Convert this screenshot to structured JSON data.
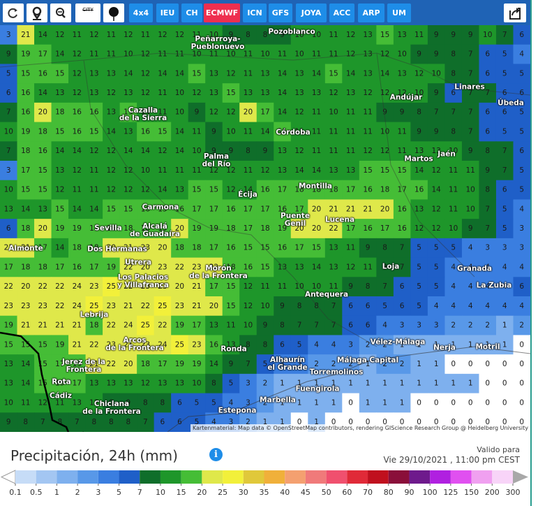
{
  "toolbar": {
    "city_button": "CITY",
    "buttons": [
      "4x4",
      "IEU",
      "CH",
      "ECMWF",
      "ICN",
      "GFS",
      "JOYA",
      "ACC",
      "ARP",
      "UM"
    ],
    "active": "ECMWF"
  },
  "map": {
    "grid": [
      [
        3,
        21,
        14,
        12,
        11,
        12,
        11,
        12,
        11,
        12,
        12,
        11,
        10,
        9,
        8,
        8,
        9,
        10,
        10,
        11,
        12,
        13,
        15,
        13,
        11,
        9,
        9,
        9,
        10,
        7,
        6
      ],
      [
        9,
        19,
        17,
        14,
        12,
        11,
        11,
        10,
        12,
        11,
        11,
        10,
        11,
        10,
        11,
        10,
        11,
        10,
        11,
        11,
        12,
        13,
        12,
        10,
        9,
        9,
        8,
        7,
        6,
        5,
        4
      ],
      [
        5,
        15,
        16,
        15,
        12,
        13,
        13,
        14,
        12,
        14,
        14,
        15,
        13,
        12,
        11,
        13,
        14,
        13,
        14,
        15,
        14,
        13,
        14,
        13,
        12,
        10,
        8,
        7,
        6,
        5,
        5
      ],
      [
        6,
        16,
        14,
        13,
        12,
        13,
        12,
        13,
        12,
        11,
        10,
        12,
        13,
        15,
        13,
        13,
        14,
        13,
        13,
        12,
        13,
        12,
        12,
        12,
        10,
        9,
        6,
        7,
        7,
        6,
        6
      ],
      [
        7,
        16,
        20,
        18,
        16,
        16,
        13,
        15,
        14,
        11,
        10,
        9,
        12,
        12,
        20,
        17,
        14,
        12,
        11,
        10,
        11,
        11,
        9,
        9,
        8,
        7,
        7,
        7,
        6,
        6,
        5
      ],
      [
        10,
        19,
        18,
        15,
        16,
        15,
        14,
        13,
        16,
        15,
        14,
        11,
        9,
        10,
        11,
        14,
        15,
        11,
        11,
        11,
        11,
        11,
        10,
        11,
        9,
        9,
        8,
        7,
        6,
        5,
        5
      ],
      [
        7,
        18,
        16,
        14,
        14,
        12,
        12,
        14,
        14,
        12,
        14,
        10,
        9,
        9,
        8,
        9,
        13,
        12,
        11,
        11,
        11,
        12,
        12,
        11,
        13,
        13,
        10,
        9,
        8,
        7,
        6
      ],
      [
        3,
        17,
        15,
        13,
        12,
        11,
        12,
        12,
        10,
        11,
        11,
        11,
        12,
        12,
        11,
        12,
        13,
        14,
        14,
        13,
        13,
        15,
        15,
        15,
        14,
        12,
        11,
        11,
        9,
        7,
        5
      ],
      [
        10,
        15,
        15,
        12,
        11,
        11,
        12,
        12,
        12,
        14,
        13,
        15,
        15,
        12,
        14,
        16,
        17,
        18,
        18,
        18,
        17,
        16,
        18,
        17,
        16,
        14,
        11,
        10,
        8,
        6,
        5
      ],
      [
        13,
        14,
        13,
        15,
        14,
        14,
        15,
        15,
        16,
        15,
        16,
        17,
        17,
        16,
        17,
        17,
        16,
        17,
        20,
        21,
        21,
        21,
        20,
        16,
        13,
        12,
        11,
        10,
        7,
        5,
        4
      ],
      [
        6,
        18,
        20,
        19,
        19,
        18,
        16,
        18,
        18,
        19,
        20,
        19,
        19,
        18,
        17,
        18,
        19,
        20,
        20,
        22,
        17,
        16,
        17,
        16,
        12,
        12,
        10,
        9,
        7,
        5,
        3
      ],
      [
        21,
        21,
        17,
        14,
        18,
        18,
        20,
        21,
        23,
        20,
        18,
        18,
        17,
        16,
        15,
        15,
        16,
        17,
        15,
        13,
        11,
        9,
        8,
        7,
        5,
        5,
        5,
        4,
        3,
        3,
        3
      ],
      [
        17,
        18,
        18,
        17,
        16,
        17,
        19,
        22,
        20,
        23,
        22,
        23,
        22,
        18,
        16,
        15,
        13,
        13,
        14,
        13,
        12,
        11,
        8,
        7,
        5,
        5,
        4,
        4,
        4,
        4,
        4
      ],
      [
        22,
        20,
        22,
        22,
        24,
        23,
        25,
        22,
        23,
        23,
        20,
        21,
        17,
        15,
        12,
        11,
        11,
        10,
        10,
        11,
        9,
        8,
        7,
        6,
        5,
        5,
        4,
        4,
        4,
        4,
        6
      ],
      [
        23,
        23,
        23,
        22,
        24,
        25,
        23,
        21,
        22,
        25,
        23,
        21,
        20,
        15,
        12,
        10,
        9,
        8,
        8,
        7,
        6,
        6,
        5,
        6,
        5,
        4,
        4,
        4,
        4,
        4,
        4
      ],
      [
        19,
        21,
        21,
        21,
        21,
        18,
        22,
        24,
        25,
        22,
        19,
        17,
        13,
        11,
        10,
        9,
        8,
        7,
        7,
        7,
        6,
        6,
        4,
        3,
        3,
        3,
        2,
        2,
        2,
        1,
        2
      ],
      [
        15,
        15,
        15,
        19,
        21,
        22,
        23,
        21,
        23,
        24,
        25,
        23,
        16,
        13,
        8,
        8,
        6,
        5,
        4,
        4,
        3,
        2,
        2,
        1,
        1,
        1,
        1,
        1,
        1,
        1,
        0
      ],
      [
        13,
        14,
        15,
        17,
        15,
        21,
        22,
        20,
        18,
        17,
        19,
        19,
        14,
        9,
        7,
        5,
        4,
        3,
        2,
        2,
        2,
        1,
        2,
        2,
        1,
        1,
        0,
        0,
        0,
        0,
        0
      ],
      [
        13,
        14,
        15,
        15,
        17,
        13,
        13,
        13,
        12,
        13,
        13,
        10,
        8,
        5,
        3,
        2,
        1,
        1,
        1,
        1,
        1,
        1,
        1,
        1,
        1,
        1,
        1,
        1,
        0,
        0,
        0
      ],
      [
        10,
        11,
        12,
        11,
        13,
        12,
        9,
        9,
        8,
        8,
        6,
        5,
        5,
        4,
        3,
        2,
        1,
        1,
        1,
        1,
        0,
        1,
        1,
        1,
        0,
        0,
        0,
        0,
        0,
        0,
        0
      ],
      [
        9,
        8,
        7,
        8,
        7,
        8,
        8,
        8,
        7,
        6,
        6,
        5,
        4,
        3,
        2,
        1,
        1,
        0,
        1,
        0,
        0,
        0,
        0,
        0,
        0,
        0,
        0,
        0,
        0,
        0,
        0
      ]
    ],
    "cities": [
      {
        "lines": [
          "Pozoblanco"
        ]
      },
      {
        "lines": [
          "Peñarroya-",
          "Pueblonuevo"
        ]
      },
      {
        "lines": [
          "Linares"
        ]
      },
      {
        "lines": [
          "Andújar"
        ]
      },
      {
        "lines": [
          "Úbeda"
        ]
      },
      {
        "lines": [
          "Cazalla",
          "de la Sierra"
        ]
      },
      {
        "lines": [
          "Córdoba"
        ]
      },
      {
        "lines": [
          "Palma",
          "del Río"
        ]
      },
      {
        "lines": [
          "Martos"
        ]
      },
      {
        "lines": [
          "Jaén"
        ]
      },
      {
        "lines": [
          "Montilla"
        ]
      },
      {
        "lines": [
          "Écija"
        ]
      },
      {
        "lines": [
          "Carmona"
        ]
      },
      {
        "lines": [
          "Sevilla"
        ]
      },
      {
        "lines": [
          "Alcalá",
          "de Guadaíra"
        ]
      },
      {
        "lines": [
          "Puente",
          "Genil"
        ]
      },
      {
        "lines": [
          "Lucena"
        ]
      },
      {
        "lines": [
          "Almonte"
        ]
      },
      {
        "lines": [
          "Dos Hermanas"
        ]
      },
      {
        "lines": [
          "Utrera"
        ]
      },
      {
        "lines": [
          "Morón",
          "de la Frontera"
        ]
      },
      {
        "lines": [
          "Loja"
        ]
      },
      {
        "lines": [
          "Granada"
        ]
      },
      {
        "lines": [
          "Los Palacios",
          "y Villafranca"
        ]
      },
      {
        "lines": [
          "La Zubia"
        ]
      },
      {
        "lines": [
          "Antequera"
        ]
      },
      {
        "lines": [
          "Lebrija"
        ]
      },
      {
        "lines": [
          "Vélez-Málaga"
        ]
      },
      {
        "lines": [
          "Nerja"
        ]
      },
      {
        "lines": [
          "Motril"
        ]
      },
      {
        "lines": [
          "Arcos",
          "de la Frontera"
        ]
      },
      {
        "lines": [
          "Ronda"
        ]
      },
      {
        "lines": [
          "Jerez de la",
          "Frontera"
        ]
      },
      {
        "lines": [
          "Alhaurín",
          "el Grande"
        ]
      },
      {
        "lines": [
          "Málaga Capital"
        ]
      },
      {
        "lines": [
          "Torremolinos"
        ]
      },
      {
        "lines": [
          "Rota"
        ]
      },
      {
        "lines": [
          "Fuengirola"
        ]
      },
      {
        "lines": [
          "Cádiz"
        ]
      },
      {
        "lines": [
          "Marbella"
        ]
      },
      {
        "lines": [
          "Chiclana",
          "de la Frontera"
        ]
      },
      {
        "lines": [
          "Estepona"
        ]
      }
    ],
    "attribution": "Kartenmaterial: Map data © OpenStreetMap contributors, rendering GIScience Research Group @ Heidelberg University"
  },
  "panel": {
    "title": "Precipitación, 24h (mm)",
    "valid_label": "Valido para",
    "valid_time": "Vie 29/10/2021 , 11:00 pm CEST"
  },
  "legend": {
    "thresholds": [
      0.1,
      0.5,
      1,
      2,
      3,
      5,
      7,
      10,
      15,
      20,
      25,
      30,
      35,
      40,
      45,
      50,
      60,
      70,
      80,
      90,
      100,
      125,
      150,
      200,
      300
    ],
    "colors": [
      "#ffffff",
      "#c6dcf7",
      "#a3c6f2",
      "#7eb0ee",
      "#5898e8",
      "#3a7ee0",
      "#1f5fc8",
      "#0f6e2a",
      "#1e962a",
      "#45bd36",
      "#dfe84a",
      "#f2f03a",
      "#e0c83a",
      "#f0b03a",
      "#f4a070",
      "#f07a7a",
      "#f0506e",
      "#e02a38",
      "#c0101e",
      "#8a0f3a",
      "#6e1a8c",
      "#b020e0",
      "#e050f0",
      "#f0a0f0",
      "#f8d4f8",
      "#a8a8a8"
    ]
  }
}
